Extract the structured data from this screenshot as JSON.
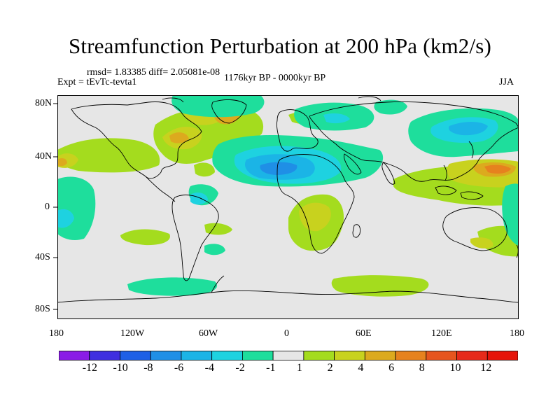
{
  "title": "Streamfunction Perturbation at 200 hPa (km2/s)",
  "stats": {
    "rmsd": "rmsd= 1.83385 diff= 2.05081e-08",
    "experiment": "Expt = tEvTc-tevta1",
    "period": "1176kyr BP - 0000kyr BP",
    "season": "JJA"
  },
  "lat_labels": [
    "80N",
    "40N",
    "0",
    "40S",
    "80S"
  ],
  "lon_labels": [
    "180",
    "120W",
    "60W",
    "0",
    "60E",
    "120E",
    "180"
  ],
  "colorbar": {
    "labels": [
      "-12",
      "-10",
      "-8",
      "-6",
      "-4",
      "-2",
      "-1",
      "1",
      "2",
      "4",
      "6",
      "8",
      "10",
      "12"
    ],
    "colors": [
      "#8a1ce6",
      "#3f2fe0",
      "#1e60e6",
      "#1f8fe6",
      "#1bb4e6",
      "#1ed2e0",
      "#1ede9c",
      "#e6e6e6",
      "#a4dc1e",
      "#c8d21e",
      "#dcaa1e",
      "#e6821e",
      "#e6551e",
      "#e62a1a",
      "#e6140a"
    ]
  },
  "theme": {
    "map_background": "#e6e6e6",
    "coast": "#000000"
  }
}
